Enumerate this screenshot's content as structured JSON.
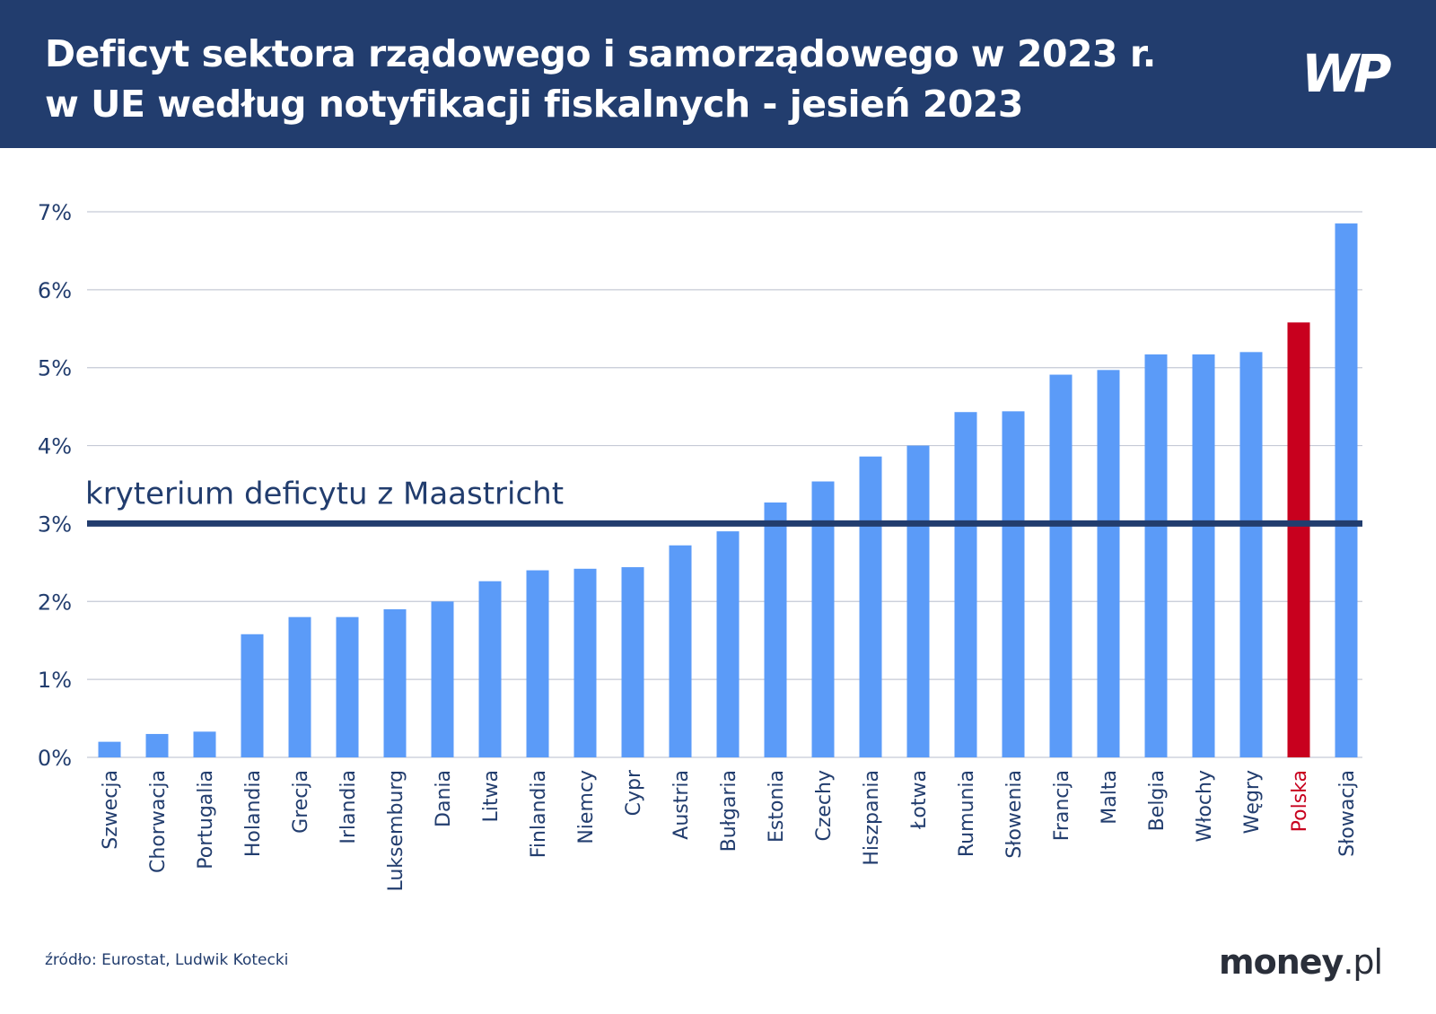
{
  "header": {
    "title_line1": "Deficyt sektora rządowego i samorządowego w 2023 r.",
    "title_line2": "w UE według notyfikacji fiskalnych - jesień 2023",
    "logo": "WP"
  },
  "footer": {
    "source": "źródło: Eurostat, Ludwik Kotecki",
    "brand_main": "money",
    "brand_suffix": ".pl"
  },
  "chart_data": {
    "type": "bar",
    "categories": [
      "Szwecja",
      "Chorwacja",
      "Portugalia",
      "Holandia",
      "Grecja",
      "Irlandia",
      "Luksemburg",
      "Dania",
      "Litwa",
      "Finlandia",
      "Niemcy",
      "Cypr",
      "Austria",
      "Bułgaria",
      "Estonia",
      "Czechy",
      "Hiszpania",
      "Łotwa",
      "Rumunia",
      "Słowenia",
      "Francja",
      "Malta",
      "Belgia",
      "Włochy",
      "Węgry",
      "Polska",
      "Słowacja"
    ],
    "values": [
      0.2,
      0.3,
      0.33,
      1.58,
      1.8,
      1.8,
      1.9,
      2.0,
      2.26,
      2.4,
      2.42,
      2.44,
      2.72,
      2.9,
      3.27,
      3.54,
      3.86,
      4.0,
      4.43,
      4.44,
      4.91,
      4.97,
      5.17,
      5.17,
      5.2,
      5.58,
      6.85
    ],
    "highlight": "Polska",
    "colors": {
      "bar": "#5b9bf8",
      "highlight": "#c8001e",
      "reference_line": "#223d6e",
      "text": "#223d6e"
    },
    "ylim": [
      0,
      7
    ],
    "yticks": [
      "0%",
      "1%",
      "2%",
      "3%",
      "4%",
      "5%",
      "6%",
      "7%"
    ],
    "grid": true,
    "reference_line": {
      "value": 3,
      "label": "kryterium deficytu z Maastricht"
    }
  }
}
